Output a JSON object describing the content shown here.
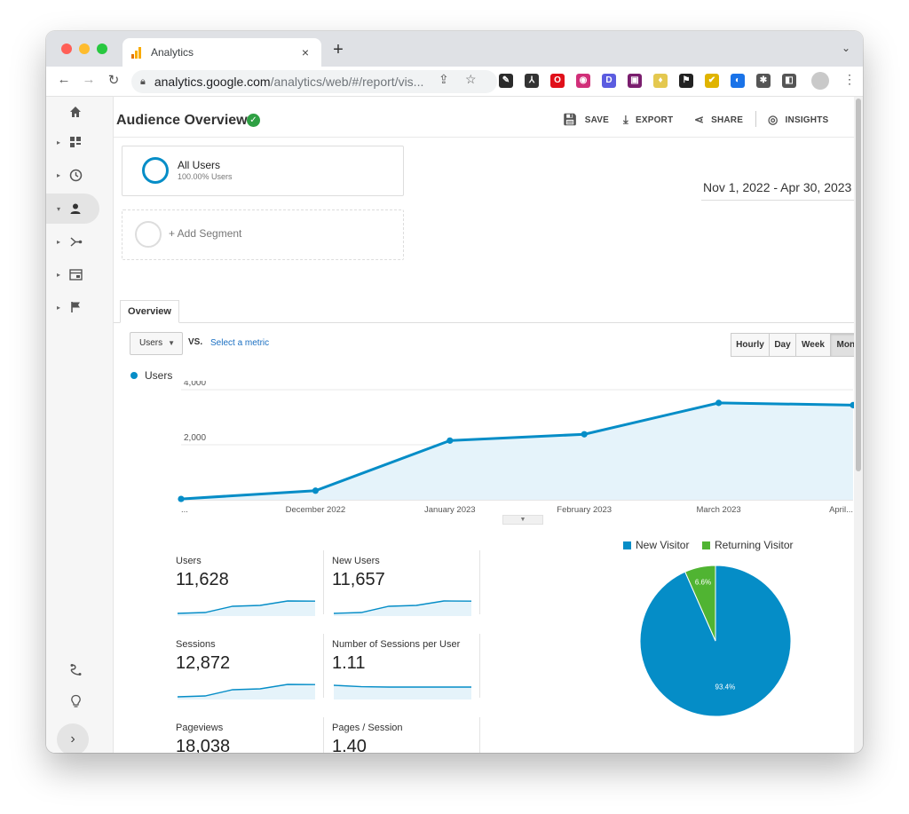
{
  "browser": {
    "tab_title": "Analytics",
    "tab_close": "×",
    "new_tab": "+",
    "tab_menu": "⌄",
    "url_host": "analytics.google.com",
    "url_path": "/analytics/web/#/report/vis...",
    "extensions": [
      {
        "name": "eyedropper-extension",
        "color": "#2b2b2b",
        "glyph": "✎"
      },
      {
        "name": "tools-extension",
        "color": "#333",
        "glyph": "⅄"
      },
      {
        "name": "opera-extension",
        "color": "#e0101a",
        "glyph": "O"
      },
      {
        "name": "color-extension",
        "color": "#d12f79",
        "glyph": "◉"
      },
      {
        "name": "d-extension",
        "color": "#5b5ce0",
        "glyph": "D"
      },
      {
        "name": "monitor-extension",
        "color": "#7a1e6e",
        "glyph": "▣"
      },
      {
        "name": "gem-extension",
        "color": "#e4c84f",
        "glyph": "♦"
      },
      {
        "name": "flag-extension",
        "color": "#222",
        "glyph": "⚑"
      },
      {
        "name": "check-extension",
        "color": "#e0b400",
        "glyph": "✔"
      },
      {
        "name": "globe-extension",
        "color": "#1a73e8",
        "glyph": "◐"
      },
      {
        "name": "puzzle-extension",
        "color": "#555",
        "glyph": "✱"
      },
      {
        "name": "sidepanel-extension",
        "color": "#555",
        "glyph": "◧"
      }
    ]
  },
  "rail": {
    "items": [
      {
        "name": "home",
        "icon": "home-icon"
      },
      {
        "name": "customization",
        "icon": "dashboard-icon"
      },
      {
        "name": "realtime",
        "icon": "clock-icon"
      },
      {
        "name": "audience",
        "icon": "person-icon"
      },
      {
        "name": "acquisition",
        "icon": "acquisition-icon"
      },
      {
        "name": "behavior",
        "icon": "behavior-icon"
      },
      {
        "name": "conversions",
        "icon": "flag-icon"
      }
    ]
  },
  "header": {
    "title": "Audience Overview",
    "save": "SAVE",
    "export": "EXPORT",
    "share": "SHARE",
    "insights": "INSIGHTS"
  },
  "segments": {
    "active_title": "All Users",
    "active_sub": "100.00% Users",
    "add_label": "+ Add Segment"
  },
  "date_range": "Nov 1, 2022 - Apr 30, 2023",
  "overview_tab": "Overview",
  "controls": {
    "metric": "Users",
    "vs": "VS.",
    "select_metric": "Select a metric",
    "granularity": [
      "Hourly",
      "Day",
      "Week",
      "Month"
    ],
    "active_granularity": "Month"
  },
  "chart_data": {
    "type": "area",
    "series": [
      {
        "name": "Users",
        "values": [
          30,
          330,
          2150,
          2380,
          3520,
          3440
        ]
      }
    ],
    "x": [
      "...",
      "December 2022",
      "January 2023",
      "February 2023",
      "March 2023",
      "April..."
    ],
    "y_ticks": [
      "4,000",
      "2,000"
    ],
    "ylim": [
      0,
      4000
    ],
    "color": "#058dc7",
    "fill": "#e5f3fa"
  },
  "scorecards": [
    {
      "label": "Users",
      "value": "11,628",
      "spark": [
        0.05,
        0.1,
        0.45,
        0.5,
        0.75,
        0.74
      ]
    },
    {
      "label": "New Users",
      "value": "11,657",
      "spark": [
        0.05,
        0.1,
        0.45,
        0.5,
        0.75,
        0.74
      ]
    },
    {
      "label": "Sessions",
      "value": "12,872",
      "spark": [
        0.05,
        0.1,
        0.45,
        0.5,
        0.75,
        0.74
      ]
    },
    {
      "label": "Number of Sessions per User",
      "value": "1.11",
      "spark": [
        0.7,
        0.62,
        0.6,
        0.6,
        0.6,
        0.6
      ]
    },
    {
      "label": "Pageviews",
      "value": "18,038",
      "spark": [
        0.05,
        0.1,
        0.45,
        0.5,
        0.75,
        0.68
      ]
    },
    {
      "label": "Pages / Session",
      "value": "1.40",
      "spark": [
        0.85,
        0.6,
        0.52,
        0.54,
        0.56,
        0.52
      ]
    }
  ],
  "pie_data": {
    "type": "pie",
    "slices": [
      {
        "name": "New Visitor",
        "value": 93.4,
        "label": "93.4%",
        "color": "#058dc7"
      },
      {
        "name": "Returning Visitor",
        "value": 6.6,
        "label": "6.6%",
        "color": "#50b432"
      }
    ]
  }
}
